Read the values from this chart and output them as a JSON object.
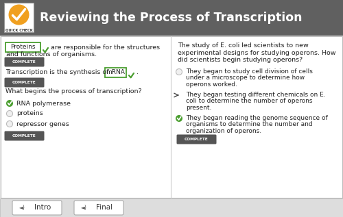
{
  "title": "Reviewing the Process of Transcription",
  "header_bg": "#606060",
  "header_text_color": "#ffffff",
  "body_bg": "#e8e8e8",
  "body_inner_bg": "#ffffff",
  "complete_bg": "#555555",
  "checkmark_color": "#4a9e2f",
  "green_box_color": "#4a9e2f",
  "left_col": {
    "q1_fill": "Proteins",
    "q2_fill": "mRNA",
    "q3_text": "What begins the process of transcription?",
    "q3_options": [
      "RNA polymerase",
      "proteins",
      "repressor genes"
    ],
    "q3_correct": [
      0
    ]
  },
  "right_col": {
    "q_text": "The study of E. coli led scientists to new\nexperimental designs for studying operons. How\ndid scientists begin studying operons?",
    "options": [
      "They began to study cell division of cells\nunder a microscope to determine how\noperons worked.",
      "They began testing different chemicals on E.\ncoli to determine the number of operons\npresent.",
      "They began reading the genome sequence of\norganisms to determine the number and\norganization of operons."
    ],
    "correct": [
      2
    ]
  },
  "footer_buttons": [
    "Intro",
    "Final"
  ]
}
